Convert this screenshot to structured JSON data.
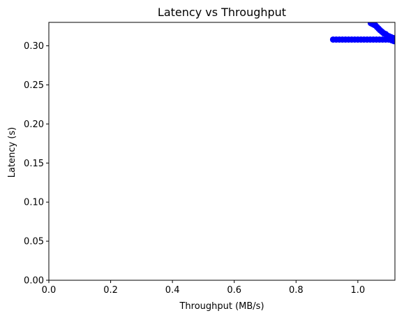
{
  "chart_data": {
    "type": "scatter",
    "title": "Latency vs Throughput",
    "xlabel": "Throughput (MB/s)",
    "ylabel": "Latency (s)",
    "xlim": [
      0.0,
      1.12
    ],
    "ylim": [
      0.0,
      0.33
    ],
    "xticks": [
      "0.0",
      "0.2",
      "0.4",
      "0.6",
      "0.8",
      "1.0"
    ],
    "xtick_values": [
      0.0,
      0.2,
      0.4,
      0.6,
      0.8,
      1.0
    ],
    "yticks": [
      "0.00",
      "0.05",
      "0.10",
      "0.15",
      "0.20",
      "0.25",
      "0.30"
    ],
    "ytick_values": [
      0.0,
      0.05,
      0.1,
      0.15,
      0.2,
      0.25,
      0.3
    ],
    "grid": false,
    "marker_color": "#0000ff",
    "points": [
      {
        "x": 0.92,
        "y": 0.308
      },
      {
        "x": 0.93,
        "y": 0.308
      },
      {
        "x": 0.94,
        "y": 0.308
      },
      {
        "x": 0.95,
        "y": 0.308
      },
      {
        "x": 0.96,
        "y": 0.308
      },
      {
        "x": 0.97,
        "y": 0.308
      },
      {
        "x": 0.98,
        "y": 0.308
      },
      {
        "x": 0.99,
        "y": 0.308
      },
      {
        "x": 1.0,
        "y": 0.308
      },
      {
        "x": 1.01,
        "y": 0.308
      },
      {
        "x": 1.02,
        "y": 0.308
      },
      {
        "x": 1.03,
        "y": 0.308
      },
      {
        "x": 1.04,
        "y": 0.308
      },
      {
        "x": 1.05,
        "y": 0.308
      },
      {
        "x": 1.06,
        "y": 0.308
      },
      {
        "x": 1.07,
        "y": 0.308
      },
      {
        "x": 1.08,
        "y": 0.308
      },
      {
        "x": 1.09,
        "y": 0.308
      },
      {
        "x": 1.1,
        "y": 0.308
      },
      {
        "x": 1.11,
        "y": 0.307
      },
      {
        "x": 1.117,
        "y": 0.306
      },
      {
        "x": 1.042,
        "y": 0.329
      },
      {
        "x": 1.047,
        "y": 0.328
      },
      {
        "x": 1.052,
        "y": 0.327
      },
      {
        "x": 1.057,
        "y": 0.326
      },
      {
        "x": 1.062,
        "y": 0.324
      },
      {
        "x": 1.067,
        "y": 0.322
      },
      {
        "x": 1.072,
        "y": 0.32
      },
      {
        "x": 1.078,
        "y": 0.318
      },
      {
        "x": 1.084,
        "y": 0.316
      },
      {
        "x": 1.09,
        "y": 0.315
      },
      {
        "x": 1.096,
        "y": 0.313
      },
      {
        "x": 1.102,
        "y": 0.312
      },
      {
        "x": 1.108,
        "y": 0.311
      },
      {
        "x": 1.114,
        "y": 0.31
      },
      {
        "x": 1.119,
        "y": 0.309
      }
    ]
  }
}
